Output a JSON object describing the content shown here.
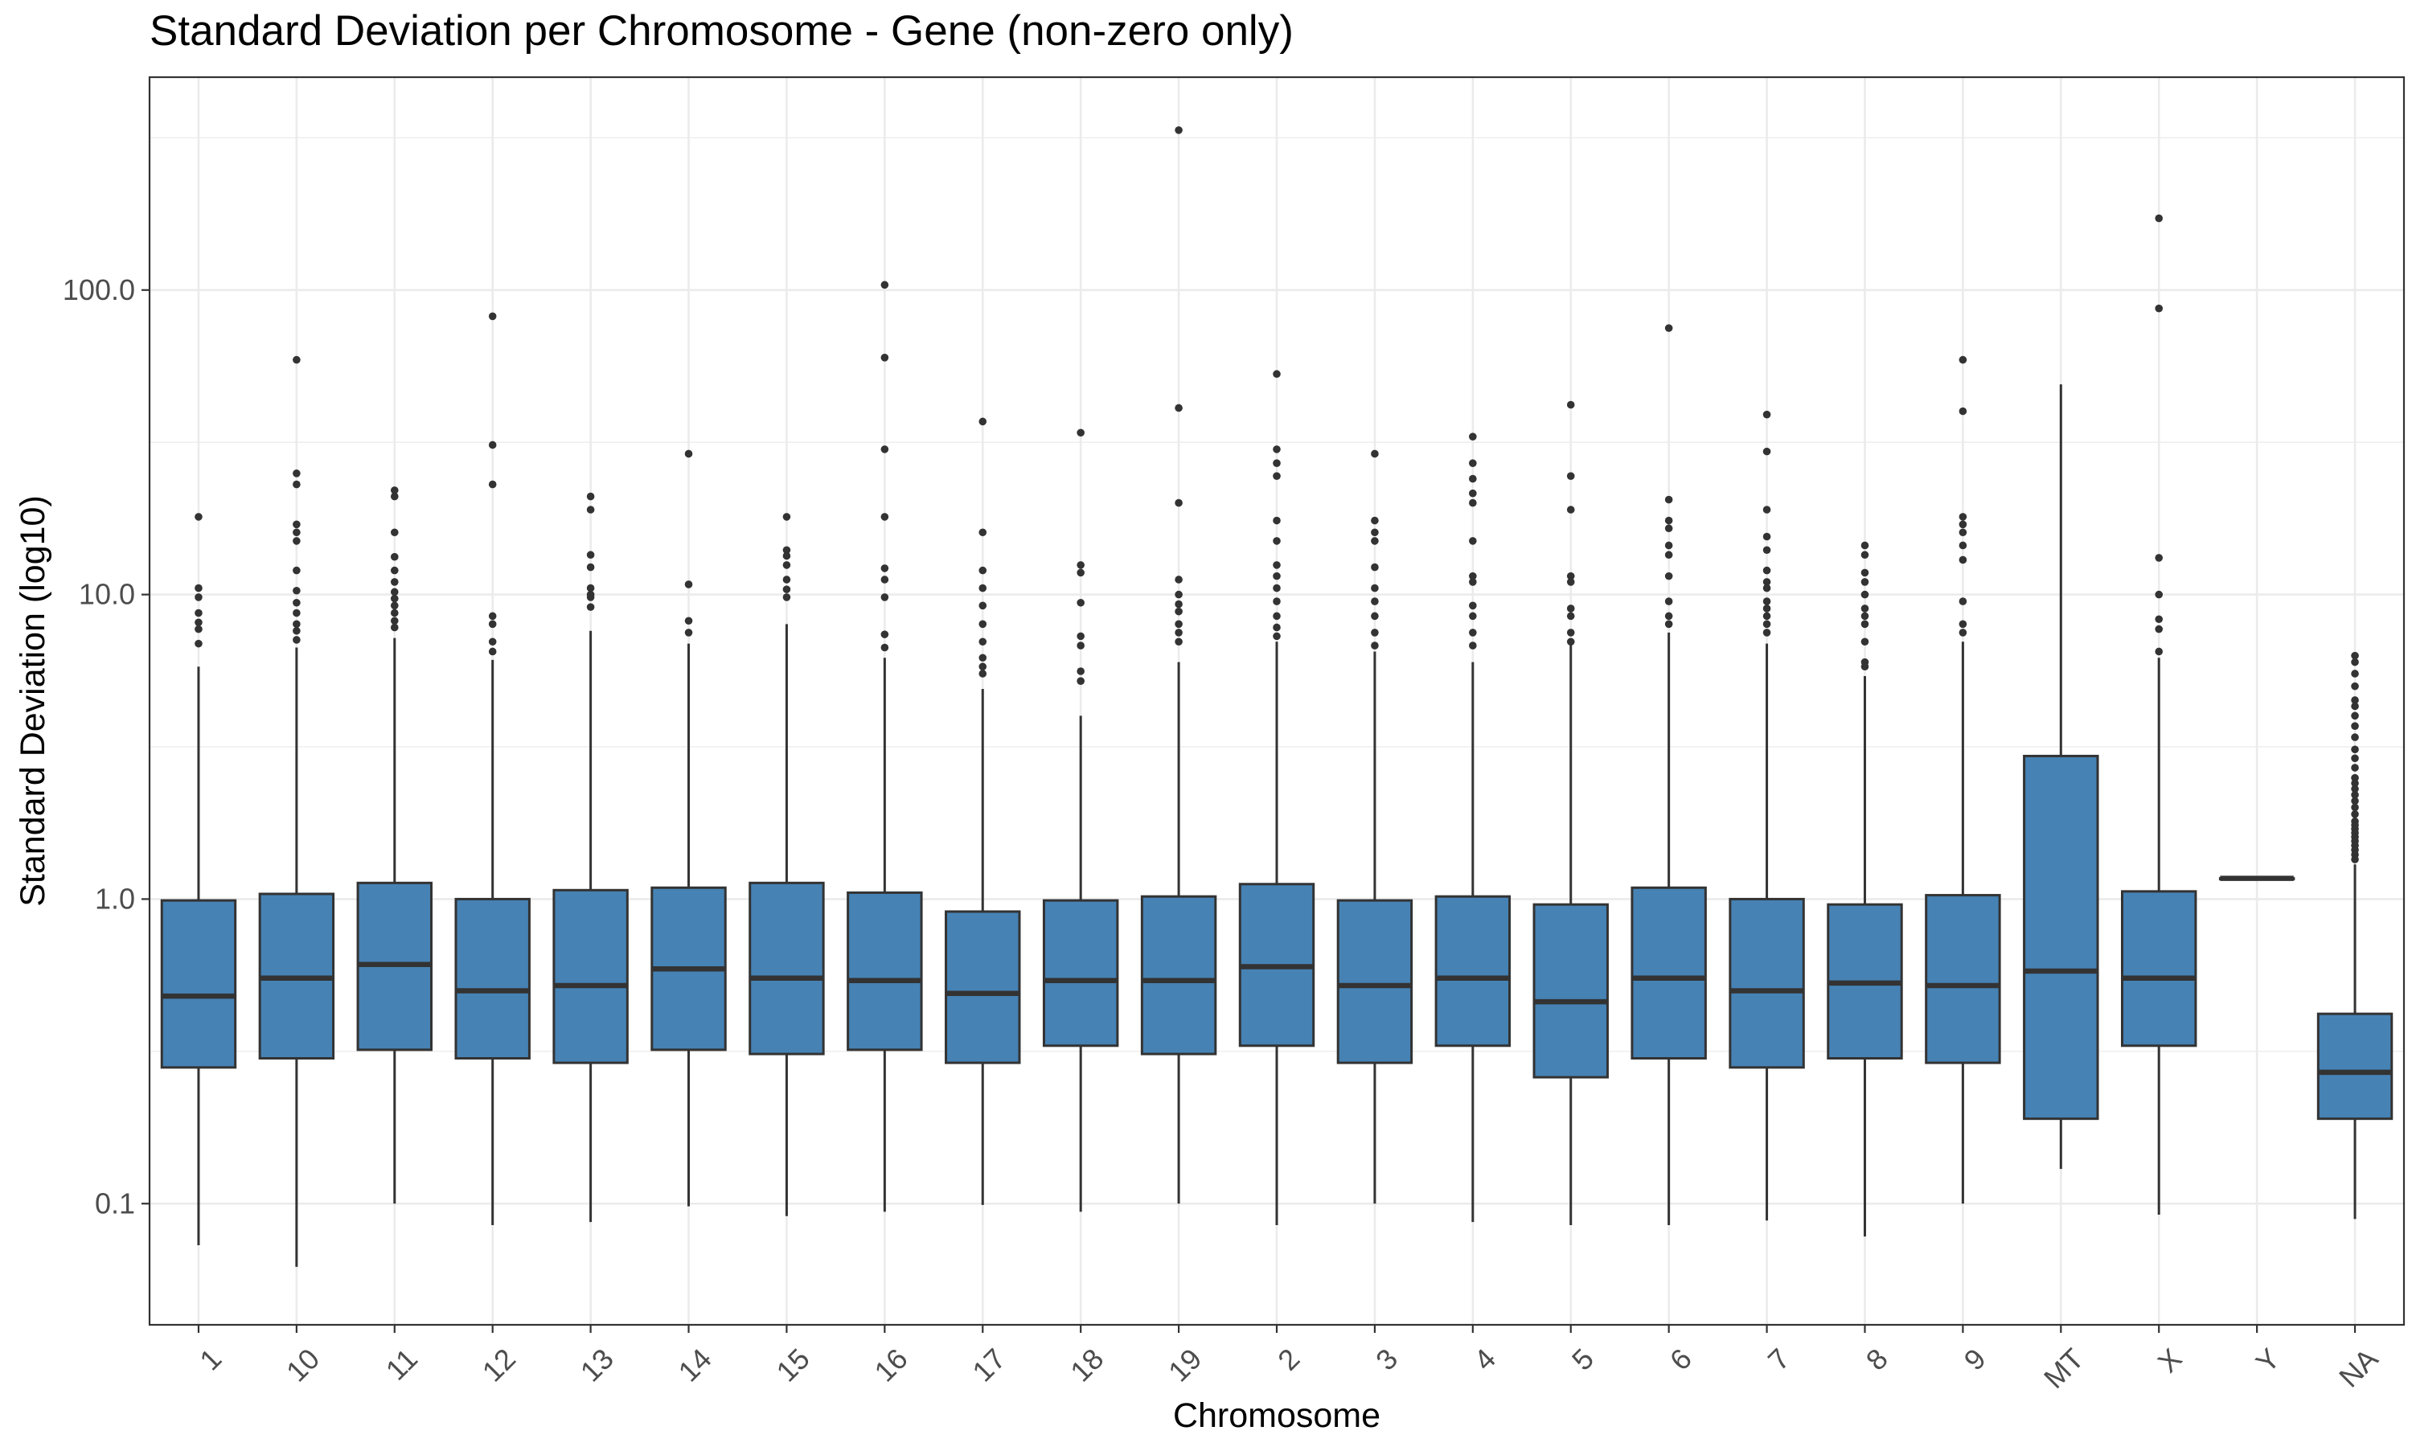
{
  "chart_data": {
    "type": "box",
    "title": "Standard Deviation per Chromosome - Gene (non-zero only)",
    "xlabel": "Chromosome",
    "ylabel": "Standard Deviation (log10)",
    "yscale": "log10",
    "ylim": [
      0.04,
      500
    ],
    "yticks": [
      0.1,
      1.0,
      10.0,
      100.0
    ],
    "ytick_labels": [
      "0.1",
      "1.0",
      "10.0",
      "100.0"
    ],
    "grid": true,
    "fill_color": "#4682B4",
    "line_color": "#333333",
    "categories": [
      "1",
      "10",
      "11",
      "12",
      "13",
      "14",
      "15",
      "16",
      "17",
      "18",
      "19",
      "2",
      "3",
      "4",
      "5",
      "6",
      "7",
      "8",
      "9",
      "MT",
      "X",
      "Y",
      "NA"
    ],
    "boxes": [
      {
        "category": "1",
        "whisker_low": 0.073,
        "q1": 0.28,
        "median": 0.48,
        "q3": 0.99,
        "whisker_high": 5.8,
        "outliers": [
          18.0,
          10.5,
          9.8,
          8.7,
          8.1,
          7.7,
          6.9
        ]
      },
      {
        "category": "10",
        "whisker_low": 0.062,
        "q1": 0.3,
        "median": 0.55,
        "q3": 1.04,
        "whisker_high": 6.7,
        "outliers": [
          59.0,
          25.0,
          23.0,
          17.0,
          16.0,
          15.0,
          12.0,
          10.3,
          9.4,
          8.7,
          8.0,
          7.6,
          7.1
        ]
      },
      {
        "category": "11",
        "whisker_low": 0.1,
        "q1": 0.32,
        "median": 0.61,
        "q3": 1.13,
        "whisker_high": 7.2,
        "outliers": [
          22.0,
          21.0,
          16.0,
          13.3,
          12.0,
          11.0,
          10.2,
          9.7,
          9.2,
          8.7,
          8.2,
          7.8
        ]
      },
      {
        "category": "12",
        "whisker_low": 0.085,
        "q1": 0.3,
        "median": 0.5,
        "q3": 1.0,
        "whisker_high": 6.1,
        "outliers": [
          82.0,
          31.0,
          23.0,
          8.5,
          8.0,
          7.0,
          6.5
        ]
      },
      {
        "category": "13",
        "whisker_low": 0.087,
        "q1": 0.29,
        "median": 0.52,
        "q3": 1.07,
        "whisker_high": 7.6,
        "outliers": [
          21.0,
          19.0,
          13.5,
          12.3,
          10.5,
          10.0,
          9.8,
          9.1
        ]
      },
      {
        "category": "14",
        "whisker_low": 0.098,
        "q1": 0.32,
        "median": 0.59,
        "q3": 1.09,
        "whisker_high": 6.9,
        "outliers": [
          29.0,
          10.8,
          8.2,
          7.5
        ]
      },
      {
        "category": "15",
        "whisker_low": 0.091,
        "q1": 0.31,
        "median": 0.55,
        "q3": 1.13,
        "whisker_high": 8.0,
        "outliers": [
          18.0,
          14.0,
          13.4,
          12.5,
          11.2,
          10.4,
          9.8
        ]
      },
      {
        "category": "16",
        "whisker_low": 0.094,
        "q1": 0.32,
        "median": 0.54,
        "q3": 1.05,
        "whisker_high": 6.2,
        "outliers": [
          104.0,
          60.0,
          30.0,
          18.0,
          12.2,
          11.2,
          9.8,
          7.4,
          6.7
        ]
      },
      {
        "category": "17",
        "whisker_low": 0.099,
        "q1": 0.29,
        "median": 0.49,
        "q3": 0.91,
        "whisker_high": 4.9,
        "outliers": [
          37.0,
          16.0,
          12.0,
          10.5,
          9.2,
          8.0,
          7.0,
          6.2,
          5.8,
          5.5
        ]
      },
      {
        "category": "18",
        "whisker_low": 0.094,
        "q1": 0.33,
        "median": 0.54,
        "q3": 0.99,
        "whisker_high": 4.0,
        "outliers": [
          34.0,
          12.5,
          11.8,
          9.4,
          7.3,
          6.8,
          5.6,
          5.2
        ]
      },
      {
        "category": "19",
        "whisker_low": 0.1,
        "q1": 0.31,
        "median": 0.54,
        "q3": 1.02,
        "whisker_high": 6.0,
        "outliers": [
          335.0,
          41.0,
          20.0,
          11.2,
          10.0,
          9.3,
          8.8,
          8.0,
          7.5,
          7.0
        ]
      },
      {
        "category": "2",
        "whisker_low": 0.085,
        "q1": 0.33,
        "median": 0.6,
        "q3": 1.12,
        "whisker_high": 7.0,
        "outliers": [
          53.0,
          30.0,
          27.0,
          24.5,
          17.5,
          15.0,
          12.5,
          11.5,
          10.5,
          9.5,
          8.5,
          7.8,
          7.3
        ]
      },
      {
        "category": "3",
        "whisker_low": 0.1,
        "q1": 0.29,
        "median": 0.52,
        "q3": 0.99,
        "whisker_high": 6.5,
        "outliers": [
          29.0,
          17.5,
          16.0,
          15.0,
          12.3,
          10.5,
          9.5,
          8.5,
          7.5,
          6.8
        ]
      },
      {
        "category": "4",
        "whisker_low": 0.087,
        "q1": 0.33,
        "median": 0.55,
        "q3": 1.02,
        "whisker_high": 6.0,
        "outliers": [
          33.0,
          27.0,
          24.0,
          21.5,
          20.0,
          15.0,
          11.5,
          11.0,
          9.2,
          8.5,
          7.5,
          6.8
        ]
      },
      {
        "category": "5",
        "whisker_low": 0.085,
        "q1": 0.26,
        "median": 0.46,
        "q3": 0.96,
        "whisker_high": 6.9,
        "outliers": [
          42.0,
          24.5,
          19.0,
          11.5,
          11.0,
          9.0,
          8.5,
          7.5,
          7.0
        ]
      },
      {
        "category": "6",
        "whisker_low": 0.085,
        "q1": 0.3,
        "median": 0.55,
        "q3": 1.09,
        "whisker_high": 7.5,
        "outliers": [
          75.0,
          20.5,
          17.5,
          16.5,
          14.5,
          13.5,
          11.5,
          9.5,
          8.5,
          8.0
        ]
      },
      {
        "category": "7",
        "whisker_low": 0.088,
        "q1": 0.28,
        "median": 0.5,
        "q3": 1.0,
        "whisker_high": 6.9,
        "outliers": [
          39.0,
          29.5,
          19.0,
          15.5,
          14.0,
          12.0,
          11.0,
          10.5,
          9.5,
          9.0,
          8.5,
          8.0,
          7.5
        ]
      },
      {
        "category": "8",
        "whisker_low": 0.078,
        "q1": 0.3,
        "median": 0.53,
        "q3": 0.96,
        "whisker_high": 5.4,
        "outliers": [
          14.5,
          13.5,
          11.8,
          11.0,
          10.0,
          9.0,
          8.5,
          8.0,
          7.0,
          6.0,
          5.8
        ]
      },
      {
        "category": "9",
        "whisker_low": 0.1,
        "q1": 0.29,
        "median": 0.52,
        "q3": 1.03,
        "whisker_high": 7.0,
        "outliers": [
          59.0,
          40.0,
          18.0,
          17.0,
          16.0,
          14.5,
          13.0,
          9.5,
          8.0,
          7.5
        ]
      },
      {
        "category": "MT",
        "whisker_low": 0.13,
        "q1": 0.19,
        "median": 0.58,
        "q3": 2.95,
        "whisker_high": 49.0,
        "outliers": []
      },
      {
        "category": "X",
        "whisker_low": 0.092,
        "q1": 0.33,
        "median": 0.55,
        "q3": 1.06,
        "whisker_high": 6.2,
        "outliers": [
          172.0,
          87.0,
          13.2,
          10.0,
          8.3,
          7.7,
          6.5
        ]
      },
      {
        "category": "Y",
        "whisker_low": 1.17,
        "q1": 1.17,
        "median": 1.17,
        "q3": 1.17,
        "whisker_high": 1.17,
        "outliers": []
      },
      {
        "category": "NA",
        "whisker_low": 0.089,
        "q1": 0.19,
        "median": 0.27,
        "q3": 0.42,
        "whisker_high": 1.3,
        "outliers": [
          6.3,
          6.0,
          5.5,
          5.0,
          4.5,
          4.3,
          4.0,
          3.7,
          3.4,
          3.1,
          2.9,
          2.7,
          2.5,
          2.4,
          2.3,
          2.2,
          2.1,
          2.0,
          1.9,
          1.8,
          1.75,
          1.7,
          1.65,
          1.6,
          1.55,
          1.5,
          1.45,
          1.4,
          1.35
        ]
      }
    ]
  }
}
